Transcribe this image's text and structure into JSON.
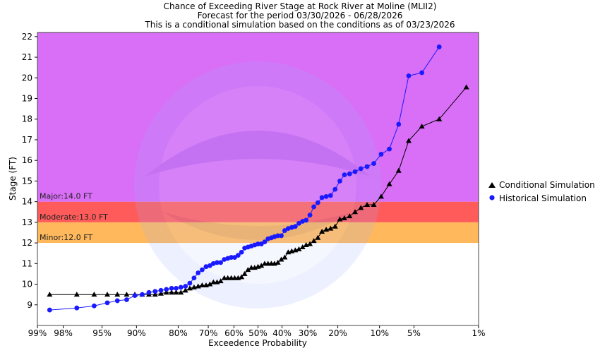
{
  "chart_data": {
    "type": "line",
    "title_lines": [
      "Chance of Exceeding River Stage at Rock River at Moline (MLII2)",
      "Forecast for the period 03/30/2026 - 06/28/2026",
      "This is a conditional simulation based on the conditions as of 03/23/2026"
    ],
    "xlabel": "Exceedence Probability",
    "ylabel": "Stage (FT)",
    "x_scale": "normal-probability",
    "x_ticks": [
      {
        "p": 99,
        "label": "99%"
      },
      {
        "p": 98,
        "label": "98%"
      },
      {
        "p": 95,
        "label": "95%"
      },
      {
        "p": 90,
        "label": "90%"
      },
      {
        "p": 80,
        "label": "80%"
      },
      {
        "p": 70,
        "label": "70%"
      },
      {
        "p": 60,
        "label": "60%"
      },
      {
        "p": 50,
        "label": "50%"
      },
      {
        "p": 40,
        "label": "40%"
      },
      {
        "p": 30,
        "label": "30%"
      },
      {
        "p": 20,
        "label": "20%"
      },
      {
        "p": 10,
        "label": "10%"
      },
      {
        "p": 5,
        "label": "5%"
      },
      {
        "p": 1,
        "label": "1%"
      }
    ],
    "y_ticks": [
      {
        "v": 9,
        "label": "9"
      },
      {
        "v": 10,
        "label": "10"
      },
      {
        "v": 11,
        "label": "11"
      },
      {
        "v": 12,
        "label": "12"
      },
      {
        "v": 13,
        "label": "13"
      },
      {
        "v": 14,
        "label": "14"
      },
      {
        "v": 15,
        "label": "15"
      },
      {
        "v": 16,
        "label": "16"
      },
      {
        "v": 17,
        "label": "17"
      },
      {
        "v": 18,
        "label": "18"
      },
      {
        "v": 19,
        "label": "19"
      },
      {
        "v": 20,
        "label": "20"
      },
      {
        "v": 21,
        "label": "21"
      },
      {
        "v": 22,
        "label": "22"
      }
    ],
    "ylim": [
      8.0,
      22.2
    ],
    "grid": false,
    "legend_placement": "right",
    "flood_bands": [
      {
        "label": "Minor:12.0 FT",
        "from": 12.0,
        "to": 13.0,
        "color": "#ffb85c"
      },
      {
        "label": "Moderate:13.0 FT",
        "from": 13.0,
        "to": 14.0,
        "color": "#ff5b5b"
      },
      {
        "label": "Major:14.0 FT",
        "from": 14.0,
        "to": 22.2,
        "color": "#d96ef7"
      }
    ],
    "series": [
      {
        "name": "Conditional Simulation",
        "color": "#000000",
        "marker": "triangle",
        "points": [
          [
            98.6,
            9.5
          ],
          [
            97.2,
            9.5
          ],
          [
            95.8,
            9.5
          ],
          [
            94.4,
            9.5
          ],
          [
            93.1,
            9.5
          ],
          [
            91.7,
            9.5
          ],
          [
            90.3,
            9.5
          ],
          [
            88.9,
            9.5
          ],
          [
            87.5,
            9.5
          ],
          [
            86.1,
            9.5
          ],
          [
            84.7,
            9.55
          ],
          [
            83.3,
            9.6
          ],
          [
            81.9,
            9.6
          ],
          [
            80.6,
            9.6
          ],
          [
            79.2,
            9.6
          ],
          [
            77.8,
            9.7
          ],
          [
            76.4,
            9.8
          ],
          [
            75.0,
            9.85
          ],
          [
            73.6,
            9.9
          ],
          [
            72.2,
            9.95
          ],
          [
            70.8,
            9.95
          ],
          [
            69.4,
            10.0
          ],
          [
            68.1,
            10.1
          ],
          [
            66.7,
            10.1
          ],
          [
            65.3,
            10.15
          ],
          [
            63.9,
            10.3
          ],
          [
            62.5,
            10.3
          ],
          [
            61.1,
            10.3
          ],
          [
            59.7,
            10.3
          ],
          [
            58.3,
            10.3
          ],
          [
            56.9,
            10.35
          ],
          [
            55.6,
            10.5
          ],
          [
            54.2,
            10.7
          ],
          [
            52.8,
            10.8
          ],
          [
            51.4,
            10.8
          ],
          [
            50.0,
            10.85
          ],
          [
            48.6,
            10.9
          ],
          [
            47.2,
            11.0
          ],
          [
            45.8,
            11.0
          ],
          [
            44.4,
            11.0
          ],
          [
            43.1,
            11.0
          ],
          [
            41.7,
            11.05
          ],
          [
            40.3,
            11.2
          ],
          [
            38.9,
            11.3
          ],
          [
            37.5,
            11.55
          ],
          [
            36.1,
            11.6
          ],
          [
            34.7,
            11.65
          ],
          [
            33.3,
            11.7
          ],
          [
            31.9,
            11.8
          ],
          [
            30.6,
            11.9
          ],
          [
            29.2,
            11.95
          ],
          [
            27.8,
            12.1
          ],
          [
            26.4,
            12.25
          ],
          [
            25.0,
            12.55
          ],
          [
            23.6,
            12.65
          ],
          [
            22.2,
            12.7
          ],
          [
            20.8,
            12.8
          ],
          [
            19.4,
            13.15
          ],
          [
            18.1,
            13.2
          ],
          [
            16.7,
            13.3
          ],
          [
            15.3,
            13.5
          ],
          [
            13.9,
            13.7
          ],
          [
            12.5,
            13.85
          ],
          [
            11.1,
            13.85
          ],
          [
            9.7,
            14.25
          ],
          [
            8.3,
            14.85
          ],
          [
            6.9,
            15.5
          ],
          [
            5.6,
            16.95
          ],
          [
            4.2,
            17.65
          ],
          [
            2.8,
            18.0
          ],
          [
            1.4,
            19.55
          ]
        ]
      },
      {
        "name": "Historical Simulation",
        "color": "#1a1aff",
        "marker": "circle",
        "points": [
          [
            98.6,
            8.75
          ],
          [
            97.2,
            8.85
          ],
          [
            95.8,
            8.95
          ],
          [
            94.4,
            9.1
          ],
          [
            93.1,
            9.2
          ],
          [
            91.7,
            9.25
          ],
          [
            90.3,
            9.45
          ],
          [
            88.9,
            9.5
          ],
          [
            87.5,
            9.6
          ],
          [
            86.1,
            9.65
          ],
          [
            84.7,
            9.7
          ],
          [
            83.3,
            9.75
          ],
          [
            81.9,
            9.8
          ],
          [
            80.6,
            9.8
          ],
          [
            79.2,
            9.85
          ],
          [
            77.8,
            9.9
          ],
          [
            76.4,
            10.05
          ],
          [
            75.0,
            10.3
          ],
          [
            73.6,
            10.55
          ],
          [
            72.2,
            10.7
          ],
          [
            70.8,
            10.85
          ],
          [
            69.4,
            10.9
          ],
          [
            68.1,
            11.0
          ],
          [
            66.7,
            11.05
          ],
          [
            65.3,
            11.05
          ],
          [
            63.9,
            11.2
          ],
          [
            62.5,
            11.25
          ],
          [
            61.1,
            11.3
          ],
          [
            59.7,
            11.3
          ],
          [
            58.3,
            11.4
          ],
          [
            56.9,
            11.55
          ],
          [
            55.6,
            11.75
          ],
          [
            54.2,
            11.8
          ],
          [
            52.8,
            11.85
          ],
          [
            51.4,
            11.9
          ],
          [
            50.0,
            11.95
          ],
          [
            48.6,
            11.95
          ],
          [
            47.2,
            12.05
          ],
          [
            45.8,
            12.2
          ],
          [
            44.4,
            12.25
          ],
          [
            43.1,
            12.3
          ],
          [
            41.7,
            12.35
          ],
          [
            40.3,
            12.35
          ],
          [
            38.9,
            12.6
          ],
          [
            37.5,
            12.7
          ],
          [
            36.1,
            12.75
          ],
          [
            34.7,
            12.8
          ],
          [
            33.3,
            12.95
          ],
          [
            31.9,
            13.05
          ],
          [
            30.6,
            13.1
          ],
          [
            29.2,
            13.35
          ],
          [
            27.8,
            13.75
          ],
          [
            26.4,
            13.95
          ],
          [
            25.0,
            14.2
          ],
          [
            23.6,
            14.25
          ],
          [
            22.2,
            14.3
          ],
          [
            20.8,
            14.6
          ],
          [
            19.4,
            15.0
          ],
          [
            18.1,
            15.3
          ],
          [
            16.7,
            15.35
          ],
          [
            15.3,
            15.45
          ],
          [
            13.9,
            15.6
          ],
          [
            12.5,
            15.7
          ],
          [
            11.1,
            15.85
          ],
          [
            9.7,
            16.3
          ],
          [
            8.3,
            16.55
          ],
          [
            6.9,
            17.75
          ],
          [
            5.6,
            20.1
          ],
          [
            4.2,
            20.25
          ],
          [
            2.8,
            21.5
          ]
        ]
      }
    ]
  }
}
